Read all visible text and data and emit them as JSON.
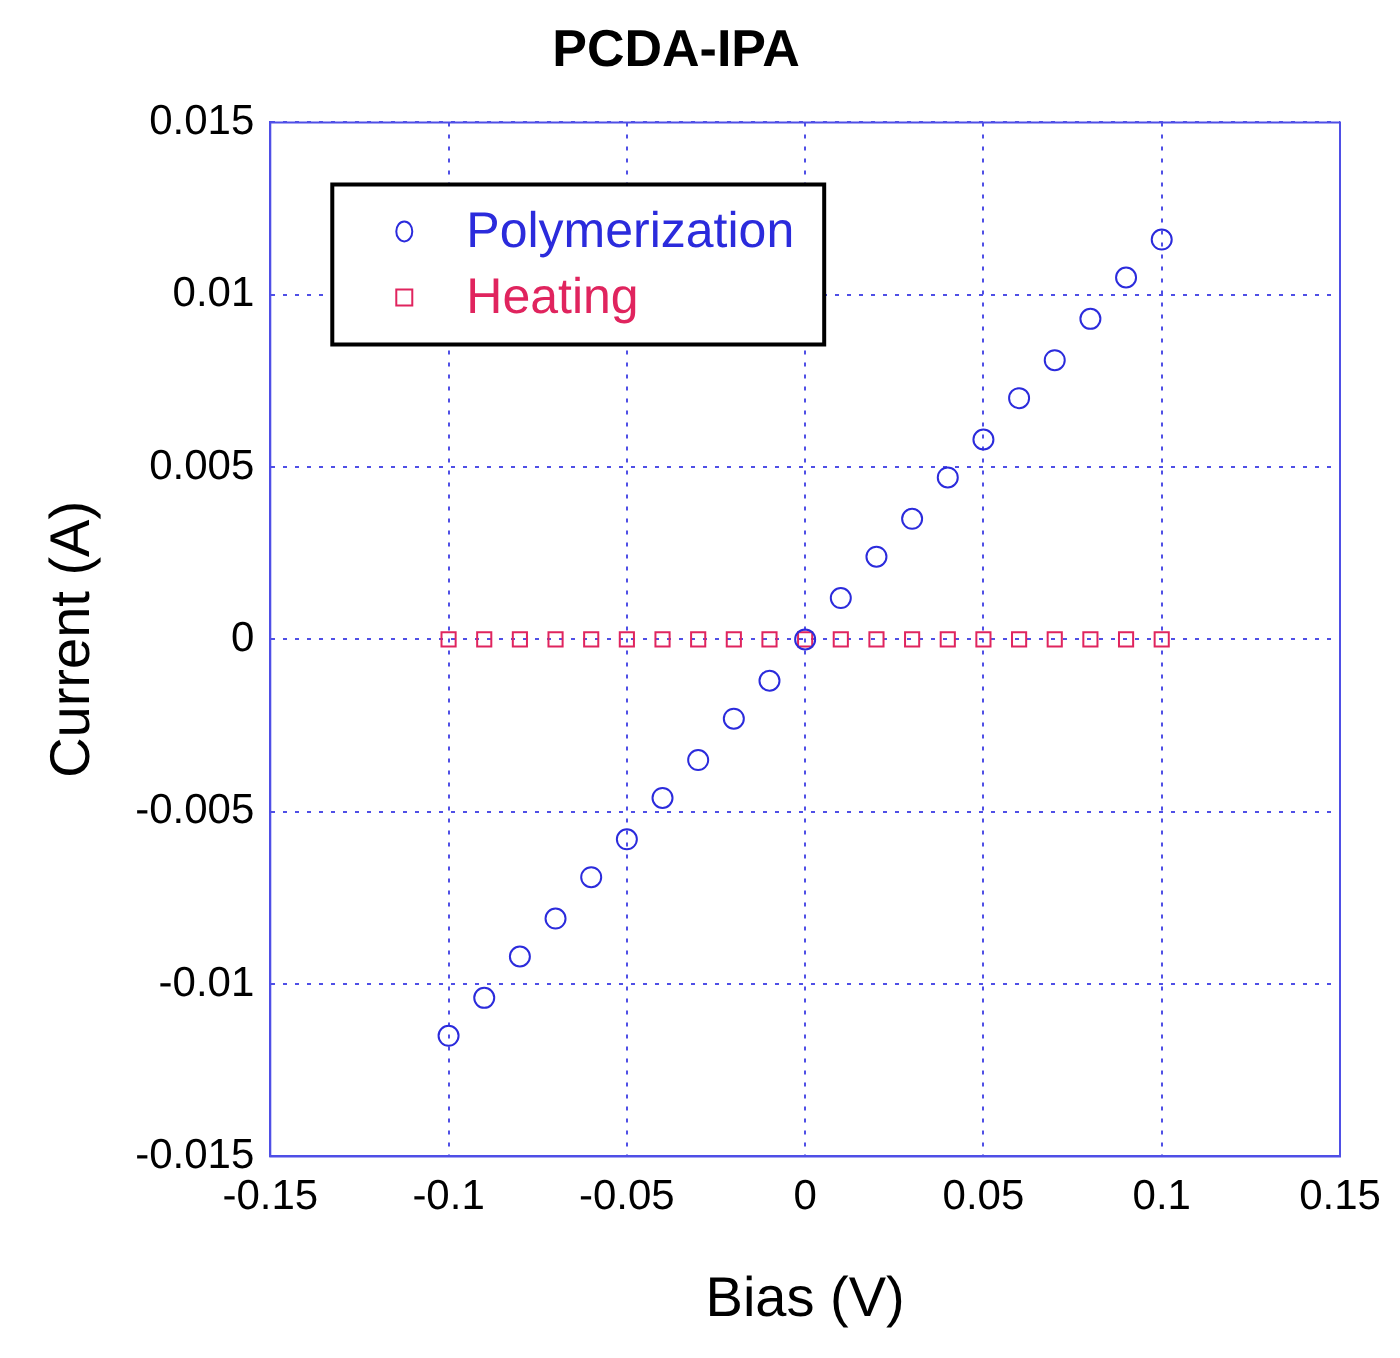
{
  "chart_data": {
    "type": "scatter",
    "title": "PCDA-IPA",
    "xlabel": "Bias (V)",
    "ylabel": "Current (A)",
    "x": [
      -0.1,
      -0.09,
      -0.08,
      -0.07,
      -0.06,
      -0.05,
      -0.04,
      -0.03,
      -0.02,
      -0.01,
      0,
      0.01,
      0.02,
      0.03,
      0.04,
      0.05,
      0.06,
      0.07,
      0.08,
      0.09,
      0.1
    ],
    "series": [
      {
        "name": "Polymerization",
        "color": "#2b2bdc",
        "marker": "circle",
        "values": [
          -0.0115,
          -0.0104,
          -0.0092,
          -0.0081,
          -0.0069,
          -0.0058,
          -0.0046,
          -0.0035,
          -0.0023,
          -0.0012,
          0,
          0.0012,
          0.0024,
          0.0035,
          0.0047,
          0.0058,
          0.007,
          0.0081,
          0.0093,
          0.0105,
          0.0116
        ]
      },
      {
        "name": "Heating",
        "color": "#e0245e",
        "marker": "square",
        "values": [
          0,
          0,
          0,
          0,
          0,
          0,
          0,
          0,
          0,
          0,
          0,
          0,
          0,
          0,
          0,
          0,
          0,
          0,
          0,
          0,
          0
        ]
      }
    ],
    "xlim": [
      -0.15,
      0.15
    ],
    "xticks": [
      -0.15,
      -0.1,
      -0.05,
      0,
      0.05,
      0.1,
      0.15
    ],
    "ylim": [
      -0.015,
      0.015
    ],
    "yticks": [
      -0.015,
      -0.01,
      -0.005,
      0,
      0.005,
      0.01,
      0.015
    ],
    "grid": true,
    "legend": "top left"
  }
}
